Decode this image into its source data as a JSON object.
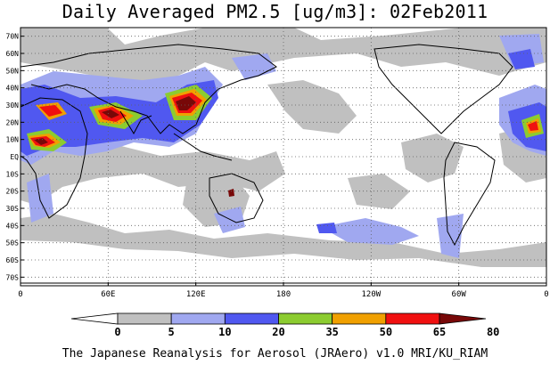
{
  "title": "Daily Averaged PM2.5 [ug/m3]: 02Feb2011",
  "footer": "The Japanese Reanalysis for Aerosol (JRAero) v1.0 MRI/KU_RIAM",
  "lat_labels": [
    "70N",
    "60N",
    "50N",
    "40N",
    "30N",
    "20N",
    "10N",
    "EQ",
    "10S",
    "20S",
    "30S",
    "40S",
    "50S",
    "60S",
    "70S"
  ],
  "lat_values": [
    70,
    60,
    50,
    40,
    30,
    20,
    10,
    0,
    -10,
    -20,
    -30,
    -40,
    -50,
    -60,
    -70
  ],
  "lon_labels": [
    "0",
    "60E",
    "120E",
    "180",
    "120W",
    "60W",
    "0"
  ],
  "lon_values": [
    0,
    60,
    120,
    180,
    240,
    300,
    360
  ],
  "map_extent": {
    "lon_min": 0,
    "lon_max": 360,
    "lat_min": -75,
    "lat_max": 75
  },
  "colorbar": {
    "levels": [
      "0",
      "5",
      "10",
      "20",
      "35",
      "50",
      "65",
      "80"
    ],
    "colors": [
      "#ffffff",
      "#c0c0c0",
      "#a0a8f0",
      "#5058f0",
      "#8ccc30",
      "#f0a000",
      "#f01010",
      "#780808"
    ]
  }
}
